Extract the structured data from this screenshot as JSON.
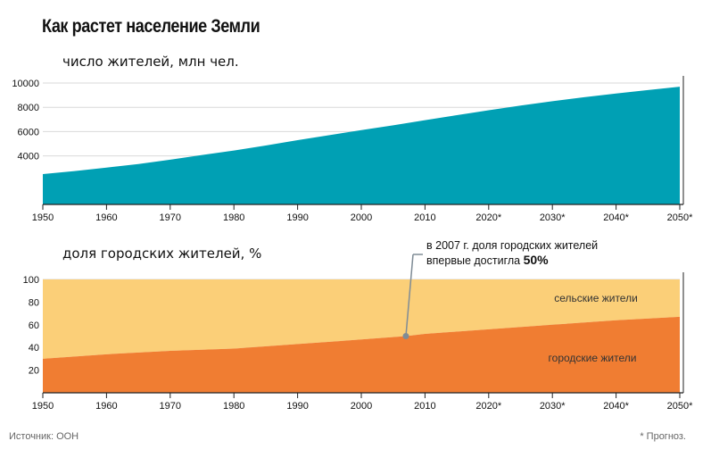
{
  "title": "Как растет население Земли",
  "source": "Источник: ООН",
  "footnote": "* Прогноз.",
  "colors": {
    "population": "#00a0b4",
    "urban": "#f07d32",
    "rural": "#fbcf78",
    "grid": "#d9d9d9",
    "callout": "#7f8c96"
  },
  "chart_data": [
    {
      "type": "area",
      "title": "число жителей, млн чел.",
      "x": [
        "1950",
        "1955",
        "1960",
        "1965",
        "1970",
        "1975",
        "1980",
        "1985",
        "1990",
        "1995",
        "2000",
        "2005",
        "2010",
        "2015",
        "2020",
        "2025",
        "2030",
        "2035",
        "2040",
        "2045",
        "2050"
      ],
      "x_tick_labels": [
        "1950",
        "1960",
        "1970",
        "1980",
        "1990",
        "2000",
        "2010",
        "2020*",
        "2030*",
        "2040*",
        "2050*"
      ],
      "y_tick_labels": [
        "4000",
        "6000",
        "8000",
        "10000"
      ],
      "series": [
        {
          "values": [
            2500,
            2750,
            3030,
            3330,
            3690,
            4070,
            4440,
            4850,
            5290,
            5710,
            6120,
            6520,
            6940,
            7350,
            7760,
            8140,
            8500,
            8830,
            9140,
            9420,
            9700
          ]
        }
      ],
      "ylim": [
        0,
        10000
      ],
      "grid": true
    },
    {
      "type": "area",
      "title": "доля городских жителей, %",
      "x": [
        "1950",
        "1960",
        "1970",
        "1980",
        "1990",
        "2000",
        "2007",
        "2010",
        "2020",
        "2030",
        "2040",
        "2050"
      ],
      "x_tick_labels": [
        "1950",
        "1960",
        "1970",
        "1980",
        "1990",
        "2000",
        "2010",
        "2020*",
        "2030*",
        "2040*",
        "2050*"
      ],
      "y_tick_labels": [
        "20",
        "40",
        "60",
        "80",
        "100"
      ],
      "series": [
        {
          "name": "городские жители",
          "values": [
            30,
            34,
            37,
            39,
            43,
            47,
            50,
            52,
            56,
            60,
            64,
            67
          ]
        },
        {
          "name": "сельские жители",
          "values": [
            70,
            66,
            63,
            61,
            57,
            53,
            50,
            48,
            44,
            40,
            36,
            33
          ]
        }
      ],
      "ylim": [
        0,
        100
      ],
      "stacked": true,
      "grid": true,
      "annotation": {
        "x": "2007",
        "y": 50,
        "line1": "в 2007 г. доля городских жителей",
        "line2": "впервые достигла",
        "highlight": "50%"
      }
    }
  ]
}
